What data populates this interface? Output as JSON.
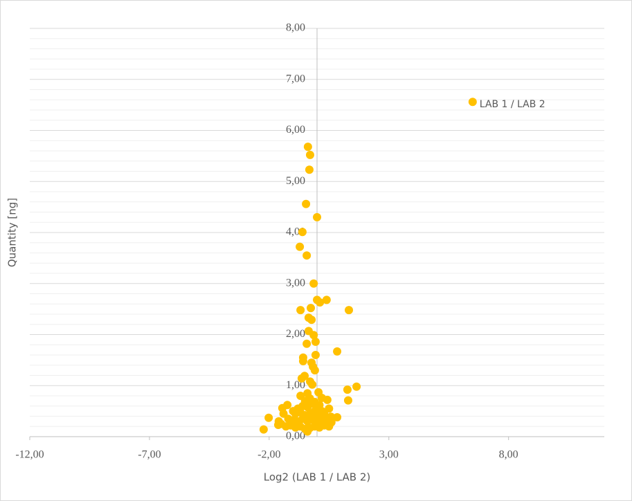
{
  "chart_data": {
    "type": "scatter",
    "x_label": "Log2 (LAB 1 / LAB 2)",
    "y_label": "Quantity [ng]",
    "color": "#FFC000",
    "grid": true,
    "minor_grid_divisions": 5,
    "xlim": [
      -12,
      12
    ],
    "ylim": [
      0,
      8
    ],
    "xticks": [
      {
        "value": -12,
        "label": "-12,00"
      },
      {
        "value": -7,
        "label": "-7,00"
      },
      {
        "value": -2,
        "label": "-2,00"
      },
      {
        "value": 3,
        "label": "3,00"
      },
      {
        "value": 8,
        "label": "8,00"
      }
    ],
    "yticks": [
      {
        "value": 0,
        "label": "0,00"
      },
      {
        "value": 1,
        "label": "1,00"
      },
      {
        "value": 2,
        "label": "2,00"
      },
      {
        "value": 3,
        "label": "3,00"
      },
      {
        "value": 4,
        "label": "4,00"
      },
      {
        "value": 5,
        "label": "5,00"
      },
      {
        "value": 6,
        "label": "6,00"
      },
      {
        "value": 7,
        "label": "7,00"
      },
      {
        "value": 8,
        "label": "8,00"
      }
    ],
    "x": [
      -0.38,
      -0.29,
      -0.32,
      -0.46,
      0.0,
      -0.61,
      -0.72,
      -0.43,
      -0.14,
      0.0,
      0.4,
      0.12,
      1.33,
      -0.69,
      -0.26,
      -0.35,
      -0.23,
      -0.35,
      -0.14,
      -0.06,
      -0.43,
      0.84,
      -0.06,
      -0.58,
      -0.58,
      -0.23,
      -0.17,
      -0.09,
      -0.52,
      -0.64,
      -0.29,
      -0.2,
      1.65,
      1.27,
      0.06,
      -0.69,
      -0.4,
      0.2,
      0.43,
      1.3,
      -1.24,
      -1.45,
      0.58,
      0.84,
      -2.02,
      -2.23,
      -1.62,
      -1.5,
      -1.3,
      -1.1,
      -0.9,
      -0.7,
      -0.5,
      -0.3,
      -0.1,
      0.1,
      0.3,
      0.5,
      -1.2,
      -1.0,
      -0.8,
      -0.6,
      -0.4,
      -0.2,
      0.0,
      0.2,
      0.4,
      -0.9,
      -0.7,
      -0.5,
      -0.3,
      -0.1,
      0.1,
      0.3,
      -0.8,
      -0.6,
      -0.4,
      -0.2,
      0.0,
      0.2,
      -0.5,
      -0.3,
      -0.1,
      0.1,
      -1.6,
      -1.4,
      -1.0,
      0.6,
      0.5,
      -0.2,
      -0.4
    ],
    "values": [
      5.68,
      5.52,
      5.23,
      4.56,
      4.3,
      4.01,
      3.72,
      3.55,
      3.0,
      2.68,
      2.68,
      2.63,
      2.48,
      2.48,
      2.52,
      2.33,
      2.29,
      2.07,
      1.99,
      1.86,
      1.82,
      1.67,
      1.6,
      1.55,
      1.48,
      1.45,
      1.37,
      1.3,
      1.19,
      1.14,
      1.08,
      1.02,
      0.98,
      0.92,
      0.87,
      0.8,
      0.85,
      0.76,
      0.72,
      0.71,
      0.62,
      0.56,
      0.39,
      0.38,
      0.37,
      0.14,
      0.23,
      0.25,
      0.2,
      0.22,
      0.18,
      0.2,
      0.15,
      0.17,
      0.2,
      0.18,
      0.22,
      0.2,
      0.35,
      0.32,
      0.3,
      0.35,
      0.3,
      0.33,
      0.3,
      0.32,
      0.35,
      0.45,
      0.48,
      0.42,
      0.45,
      0.5,
      0.42,
      0.45,
      0.55,
      0.6,
      0.58,
      0.65,
      0.55,
      0.5,
      0.7,
      0.75,
      0.68,
      0.62,
      0.3,
      0.45,
      0.5,
      0.28,
      0.55,
      0.4,
      0.1
    ],
    "labeled_points": [
      {
        "label": "LAB 1 / LAB 2",
        "x": 6.5,
        "y": 6.56
      }
    ]
  }
}
